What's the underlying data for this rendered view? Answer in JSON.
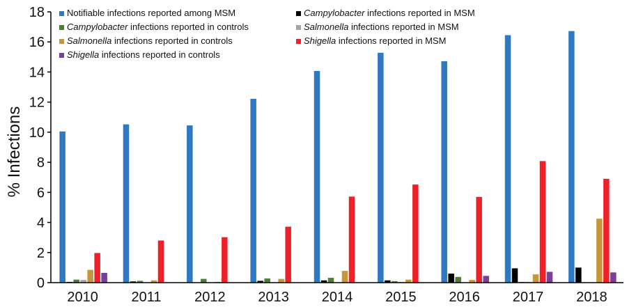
{
  "chart_data": {
    "type": "bar",
    "title": "",
    "xlabel": "",
    "ylabel": "% Infections",
    "ylim": [
      0,
      18
    ],
    "yticks": [
      0,
      2,
      4,
      6,
      8,
      10,
      12,
      14,
      16,
      18
    ],
    "grid": false,
    "legend_position": "top",
    "categories": [
      "2010",
      "2011",
      "2012",
      "2013",
      "2014",
      "2015",
      "2016",
      "2017",
      "2018"
    ],
    "series": [
      {
        "name": "Notifiable infections reported among MSM",
        "italic": "",
        "rest": "Notifiable infections reported among MSM",
        "color": "#2f78c2",
        "values": [
          10.05,
          10.52,
          10.45,
          12.22,
          14.07,
          15.28,
          14.72,
          16.45,
          16.72
        ]
      },
      {
        "name": "Campylobacter infections reported in MSM",
        "italic": "Campylobacter",
        "rest": " infections reported in MSM",
        "color": "#000000",
        "values": [
          0.05,
          0.08,
          0.02,
          0.12,
          0.15,
          0.15,
          0.6,
          0.95,
          1.0
        ]
      },
      {
        "name": "Campylobacter infections reported in controls",
        "italic": "Campylobacter",
        "rest": " infections reported in controls",
        "color": "#4e7d3a",
        "values": [
          0.2,
          0.12,
          0.25,
          0.28,
          0.32,
          0.1,
          0.38,
          0.05,
          0.0
        ]
      },
      {
        "name": "Salmonella infections reported in MSM",
        "italic": "Salmonella",
        "rest": " infections reported in MSM",
        "color": "#a6a6a6",
        "values": [
          0.18,
          0.02,
          0.02,
          0.02,
          0.02,
          0.05,
          0.02,
          0.05,
          0.0
        ]
      },
      {
        "name": "Salmonella infections reported in controls",
        "italic": "Salmonella",
        "rest": " infections reported in controls",
        "color": "#c4983a",
        "values": [
          0.85,
          0.15,
          0.05,
          0.25,
          0.78,
          0.2,
          0.18,
          0.55,
          4.25
        ]
      },
      {
        "name": "Shigella infections reported in MSM",
        "italic": "Shigella",
        "rest": " infections reported in MSM",
        "color": "#ee2028",
        "values": [
          1.97,
          2.8,
          3.02,
          3.72,
          5.72,
          6.52,
          5.7,
          8.08,
          6.9
        ]
      },
      {
        "name": "Shigella infections reported in controls",
        "italic": "Shigella",
        "rest": " infections reported in controls",
        "color": "#7b3f98",
        "values": [
          0.65,
          0.0,
          0.0,
          0.0,
          0.0,
          0.0,
          0.45,
          0.72,
          0.68
        ]
      }
    ]
  }
}
